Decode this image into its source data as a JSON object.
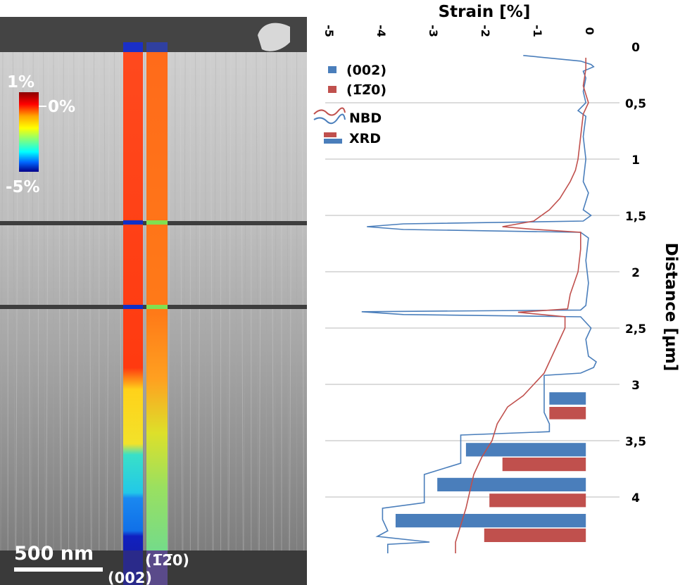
{
  "panel_left": {
    "scale_bar_label": "500 nm",
    "strip_labels": [
      "(002)",
      "(1̅2̅0)"
    ],
    "colorbar": {
      "top_label": "1%",
      "mid_label": "0%",
      "bottom_label": "-5%"
    }
  },
  "chart_data": {
    "type": "line",
    "orientation": "vertical",
    "title": "Strain [%]",
    "xlabel": "Strain [%]",
    "ylabel": "Distance [µm]",
    "xlim": [
      -5,
      0.2
    ],
    "ylim": [
      0,
      4.5
    ],
    "x_ticks": [
      "-5",
      "-4",
      "-3",
      "-2",
      "-1",
      "0"
    ],
    "y_ticks": [
      "0",
      "0,5",
      "1",
      "1,5",
      "2",
      "2,5",
      "3",
      "3,5",
      "4"
    ],
    "y_tick_values": [
      0,
      0.5,
      1,
      1.5,
      2,
      2.5,
      3,
      3.5,
      4
    ],
    "legend": {
      "position": "top-left",
      "entries": [
        "(002)",
        "(1̅2̅0)",
        "NBD",
        "XRD"
      ]
    },
    "colors": {
      "c002": "#4a7ebb",
      "c120": "#c0504d"
    },
    "series": [
      {
        "name": "(002) NBD",
        "color": "#4a7ebb",
        "points": [
          [
            -1.2,
            0.08
          ],
          [
            -0.1,
            0.13
          ],
          [
            0.1,
            0.16
          ],
          [
            0.15,
            0.18
          ],
          [
            -0.05,
            0.22
          ],
          [
            0.0,
            0.28
          ],
          [
            -0.05,
            0.4
          ],
          [
            0.0,
            0.5
          ],
          [
            -0.15,
            0.57
          ],
          [
            0.0,
            0.62
          ],
          [
            -0.05,
            0.8
          ],
          [
            0.0,
            1.0
          ],
          [
            -0.05,
            1.2
          ],
          [
            0.05,
            1.3
          ],
          [
            -0.05,
            1.45
          ],
          [
            0.1,
            1.5
          ],
          [
            -0.05,
            1.55
          ],
          [
            -3.5,
            1.575
          ],
          [
            -4.2,
            1.6
          ],
          [
            -3.5,
            1.625
          ],
          [
            -0.1,
            1.65
          ],
          [
            0.05,
            1.7
          ],
          [
            0.0,
            1.9
          ],
          [
            0.05,
            2.1
          ],
          [
            0.0,
            2.3
          ],
          [
            -0.1,
            2.34
          ],
          [
            -4.3,
            2.355
          ],
          [
            -3.5,
            2.38
          ],
          [
            -0.1,
            2.4
          ],
          [
            0.1,
            2.5
          ],
          [
            0.0,
            2.6
          ],
          [
            0.05,
            2.75
          ],
          [
            0.2,
            2.8
          ],
          [
            0.15,
            2.85
          ],
          [
            -0.1,
            2.9
          ],
          [
            -0.8,
            2.92
          ],
          [
            -0.8,
            3.0
          ],
          [
            -0.8,
            3.25
          ],
          [
            -0.7,
            3.35
          ],
          [
            -0.7,
            3.42
          ],
          [
            -2.4,
            3.45
          ],
          [
            -2.4,
            3.55
          ],
          [
            -2.4,
            3.7
          ],
          [
            -3.1,
            3.8
          ],
          [
            -3.1,
            3.9
          ],
          [
            -3.1,
            4.05
          ],
          [
            -3.9,
            4.1
          ],
          [
            -3.9,
            4.2
          ],
          [
            -3.8,
            4.3
          ],
          [
            -4.0,
            4.35
          ],
          [
            -3.0,
            4.4
          ],
          [
            -3.8,
            4.42
          ],
          [
            -3.8,
            4.5
          ]
        ]
      },
      {
        "name": "(1̅2̅0) NBD",
        "color": "#c0504d",
        "points": [
          [
            0.0,
            0.1
          ],
          [
            0.0,
            0.2
          ],
          [
            -0.05,
            0.35
          ],
          [
            0.05,
            0.5
          ],
          [
            -0.05,
            0.6
          ],
          [
            -0.1,
            0.8
          ],
          [
            -0.15,
            1.0
          ],
          [
            -0.2,
            1.1
          ],
          [
            -0.3,
            1.2
          ],
          [
            -0.5,
            1.35
          ],
          [
            -0.7,
            1.45
          ],
          [
            -1.0,
            1.55
          ],
          [
            -1.6,
            1.6
          ],
          [
            -1.1,
            1.62
          ],
          [
            -0.1,
            1.65
          ],
          [
            -0.1,
            1.8
          ],
          [
            -0.15,
            2.0
          ],
          [
            -0.3,
            2.2
          ],
          [
            -0.35,
            2.33
          ],
          [
            -1.3,
            2.36
          ],
          [
            -0.4,
            2.4
          ],
          [
            -0.4,
            2.5
          ],
          [
            -0.5,
            2.6
          ],
          [
            -0.6,
            2.7
          ],
          [
            -0.7,
            2.8
          ],
          [
            -0.8,
            2.9
          ],
          [
            -1.0,
            3.0
          ],
          [
            -1.2,
            3.1
          ],
          [
            -1.5,
            3.2
          ],
          [
            -1.7,
            3.35
          ],
          [
            -1.8,
            3.5
          ],
          [
            -2.0,
            3.65
          ],
          [
            -2.15,
            3.8
          ],
          [
            -2.2,
            3.9
          ],
          [
            -2.3,
            4.1
          ],
          [
            -2.4,
            4.25
          ],
          [
            -2.5,
            4.4
          ],
          [
            -2.5,
            4.5
          ]
        ]
      },
      {
        "name": "(002) XRD",
        "type": "bar",
        "color": "#4a7ebb",
        "bars": [
          {
            "x": -0.7,
            "y0": 3.07,
            "y1": 3.18
          },
          {
            "x": -2.3,
            "y0": 3.52,
            "y1": 3.64
          },
          {
            "x": -2.85,
            "y0": 3.83,
            "y1": 3.95
          },
          {
            "x": -3.65,
            "y0": 4.15,
            "y1": 4.27
          }
        ]
      },
      {
        "name": "(1̅2̅0) XRD",
        "type": "bar",
        "color": "#c0504d",
        "bars": [
          {
            "x": -0.7,
            "y0": 3.2,
            "y1": 3.31
          },
          {
            "x": -1.6,
            "y0": 3.65,
            "y1": 3.77
          },
          {
            "x": -1.85,
            "y0": 3.97,
            "y1": 4.09
          },
          {
            "x": -1.95,
            "y0": 4.28,
            "y1": 4.4
          }
        ]
      }
    ]
  }
}
